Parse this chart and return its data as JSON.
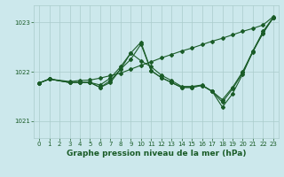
{
  "title": "Graphe pression niveau de la mer (hPa)",
  "background_color": "#cce8ec",
  "grid_color": "#aacccc",
  "line_color": "#1a5c28",
  "xlim": [
    -0.5,
    23.5
  ],
  "ylim": [
    1020.65,
    1023.35
  ],
  "yticks": [
    1021,
    1022,
    1023
  ],
  "xticks": [
    0,
    1,
    2,
    3,
    4,
    5,
    6,
    7,
    8,
    9,
    10,
    11,
    12,
    13,
    14,
    15,
    16,
    17,
    18,
    19,
    20,
    21,
    22,
    23
  ],
  "line_straight": {
    "x": [
      0,
      1,
      3,
      4,
      5,
      6,
      7,
      8,
      9,
      10,
      11,
      12,
      13,
      14,
      15,
      16,
      17,
      18,
      19,
      20,
      21,
      22,
      23
    ],
    "y": [
      1021.77,
      1021.85,
      1021.8,
      1021.82,
      1021.83,
      1021.87,
      1021.92,
      1021.97,
      1022.05,
      1022.13,
      1022.2,
      1022.28,
      1022.35,
      1022.42,
      1022.48,
      1022.55,
      1022.62,
      1022.68,
      1022.75,
      1022.82,
      1022.88,
      1022.95,
      1023.12
    ]
  },
  "line_peak": {
    "x": [
      0,
      1,
      3,
      4,
      5,
      6,
      7,
      8,
      9,
      10,
      11,
      12,
      13,
      14,
      15,
      16,
      17,
      18,
      19,
      20,
      21,
      22,
      23
    ],
    "y": [
      1021.77,
      1021.85,
      1021.78,
      1021.78,
      1021.78,
      1021.68,
      1021.82,
      1022.05,
      1022.25,
      1022.56,
      1022.02,
      1021.88,
      1021.78,
      1021.68,
      1021.68,
      1021.72,
      1021.6,
      1021.38,
      1021.65,
      1021.98,
      1022.4,
      1022.8,
      1023.1
    ]
  },
  "line_mid": {
    "x": [
      0,
      1,
      3,
      4,
      5,
      6,
      7,
      8,
      9,
      10,
      11,
      12,
      13,
      14,
      15,
      16,
      17,
      18,
      19,
      20,
      21,
      22,
      23
    ],
    "y": [
      1021.77,
      1021.85,
      1021.78,
      1021.78,
      1021.78,
      1021.73,
      1021.87,
      1022.1,
      1022.38,
      1022.22,
      1022.1,
      1021.93,
      1021.82,
      1021.7,
      1021.7,
      1021.73,
      1021.6,
      1021.43,
      1021.68,
      1022.0,
      1022.42,
      1022.78,
      1023.1
    ]
  },
  "line_dip": {
    "x": [
      0,
      1,
      3,
      4,
      5,
      6,
      7,
      8,
      9,
      10,
      11,
      12,
      13,
      14,
      15,
      16,
      17,
      18,
      19,
      20,
      21,
      22,
      23
    ],
    "y": [
      1021.77,
      1021.85,
      1021.78,
      1021.78,
      1021.78,
      1021.68,
      1021.78,
      1022.05,
      1022.38,
      1022.6,
      1022.02,
      1021.88,
      1021.78,
      1021.68,
      1021.68,
      1021.72,
      1021.6,
      1021.28,
      1021.55,
      1021.95,
      1022.42,
      1022.82,
      1023.1
    ]
  }
}
